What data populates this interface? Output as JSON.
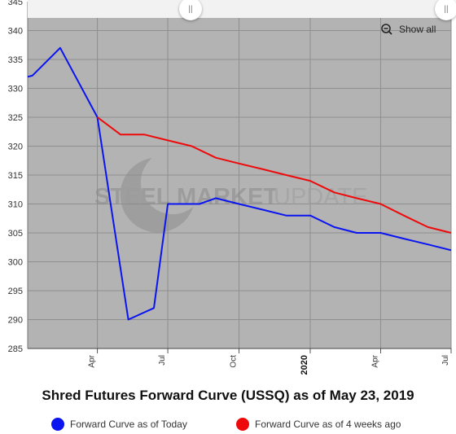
{
  "title": "Shred Futures Forward Curve (USSQ) as of May 23, 2019",
  "show_all_label": "Show all",
  "watermark": {
    "brand_bold": "STEEL MARKET",
    "brand_light": "UPDATE"
  },
  "scrollbar": {
    "handle_left_glyph": "||",
    "handle_right_glyph": "||"
  },
  "legend": [
    {
      "label": "Forward Curve as of Today",
      "color": "#0a14f0"
    },
    {
      "label": "Forward Curve as of 4 weeks ago",
      "color": "#ee0a0a"
    }
  ],
  "chart_data": {
    "type": "line",
    "title": "Shred Futures Forward Curve (USSQ) as of May 23, 2019",
    "xlabel": "",
    "ylabel": "",
    "x_range": [
      "2019-01-01",
      "2020-07-01"
    ],
    "ylim": [
      285,
      345
    ],
    "y_ticks": [
      285,
      290,
      295,
      300,
      305,
      310,
      315,
      320,
      325,
      330,
      335,
      340,
      345
    ],
    "x_ticks": [
      {
        "date": "2019-04-01",
        "label": "Apr",
        "bold": false
      },
      {
        "date": "2019-07-01",
        "label": "Jul",
        "bold": false
      },
      {
        "date": "2019-10-01",
        "label": "Oct",
        "bold": false
      },
      {
        "date": "2020-01-01",
        "label": "2020",
        "bold": true
      },
      {
        "date": "2020-04-01",
        "label": "Apr",
        "bold": false
      },
      {
        "date": "2020-07-01",
        "label": "Jul",
        "bold": false
      }
    ],
    "grid": true,
    "background": "#b3b3b3",
    "legend_position": "bottom",
    "series": [
      {
        "name": "Forward Curve as of Today",
        "color": "#0a14f0",
        "points": [
          [
            "2019-01-01",
            332
          ],
          [
            "2019-01-07",
            332.2
          ],
          [
            "2019-02-12",
            337
          ],
          [
            "2019-04-01",
            325
          ],
          [
            "2019-05-11",
            290
          ],
          [
            "2019-06-13",
            292
          ],
          [
            "2019-07-01",
            310
          ],
          [
            "2019-08-11",
            310
          ],
          [
            "2019-09-01",
            311
          ],
          [
            "2019-10-01",
            310
          ],
          [
            "2019-11-01",
            309
          ],
          [
            "2019-12-01",
            308
          ],
          [
            "2020-01-01",
            308
          ],
          [
            "2020-02-01",
            306
          ],
          [
            "2020-03-01",
            305
          ],
          [
            "2020-04-01",
            305
          ],
          [
            "2020-05-01",
            304
          ],
          [
            "2020-06-01",
            303
          ],
          [
            "2020-07-01",
            302
          ]
        ]
      },
      {
        "name": "Forward Curve as of 4 weeks ago",
        "color": "#ee0a0a",
        "points": [
          [
            "2019-04-01",
            325
          ],
          [
            "2019-05-01",
            322
          ],
          [
            "2019-06-01",
            322
          ],
          [
            "2019-07-01",
            321
          ],
          [
            "2019-08-01",
            320
          ],
          [
            "2019-09-01",
            318
          ],
          [
            "2019-10-01",
            317
          ],
          [
            "2019-11-01",
            316
          ],
          [
            "2019-12-01",
            315
          ],
          [
            "2020-01-01",
            314
          ],
          [
            "2020-02-01",
            312
          ],
          [
            "2020-03-01",
            311
          ],
          [
            "2020-04-01",
            310
          ],
          [
            "2020-05-01",
            308
          ],
          [
            "2020-06-01",
            306
          ],
          [
            "2020-07-01",
            305
          ]
        ]
      }
    ]
  }
}
